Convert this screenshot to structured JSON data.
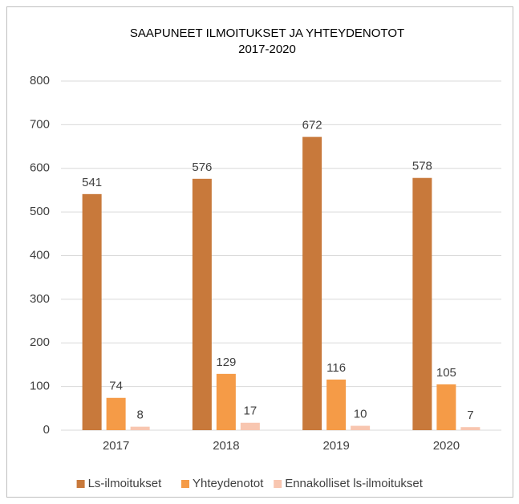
{
  "chart_data": {
    "type": "bar",
    "title": "SAAPUNEET  ILMOITUKSET  JA YHTEYDENOTOT",
    "subtitle": "2017-2020",
    "categories": [
      "2017",
      "2018",
      "2019",
      "2020"
    ],
    "series": [
      {
        "name": "Ls-ilmoitukset",
        "color": "#c8793b",
        "values": [
          541,
          576,
          672,
          578
        ]
      },
      {
        "name": "Yhteydenotot",
        "color": "#f59b47",
        "values": [
          74,
          129,
          116,
          105
        ]
      },
      {
        "name": "Ennakolliset ls-ilmoitukset",
        "color": "#f8c6b0",
        "values": [
          8,
          17,
          10,
          7
        ]
      }
    ],
    "ylim": [
      0,
      800
    ],
    "yticks": [
      0,
      100,
      200,
      300,
      400,
      500,
      600,
      700,
      800
    ],
    "grid": true,
    "legend": "bottom"
  }
}
